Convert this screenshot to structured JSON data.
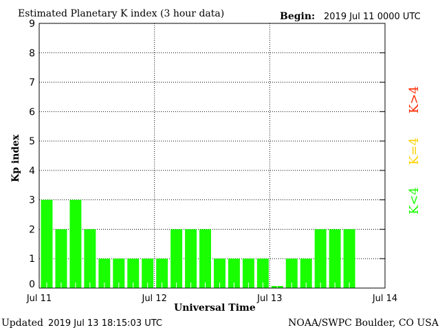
{
  "chart_data": {
    "type": "bar",
    "title": "Estimated Planetary K index (3 hour data)",
    "begin_label": "Begin:",
    "begin_value": "2019 Jul 11 0000 UTC",
    "xlabel": "Universal Time",
    "ylabel": "Kp index",
    "ylim": [
      0,
      9
    ],
    "yticks": [
      "0",
      "1",
      "2",
      "3",
      "4",
      "5",
      "6",
      "7",
      "8",
      "9"
    ],
    "xticks": [
      "Jul 11",
      "Jul 12",
      "Jul 13",
      "Jul 14"
    ],
    "slots": 24,
    "values": [
      3,
      2,
      3,
      2,
      1,
      1,
      1,
      1,
      1,
      2,
      2,
      2,
      1,
      1,
      1,
      1,
      0.07,
      1,
      1,
      2,
      2,
      2
    ],
    "bar_color": "#19ff00",
    "legend": [
      {
        "label": "K<4",
        "color": "#19ff00"
      },
      {
        "label": "K=4",
        "color": "#ffd200"
      },
      {
        "label": "K>4",
        "color": "#ff2a00"
      }
    ],
    "grid": true
  },
  "footer": {
    "updated_label": "Updated",
    "updated_value": "2019 Jul 13 18:15:03 UTC",
    "source": "NOAA/SWPC Boulder, CO USA"
  }
}
